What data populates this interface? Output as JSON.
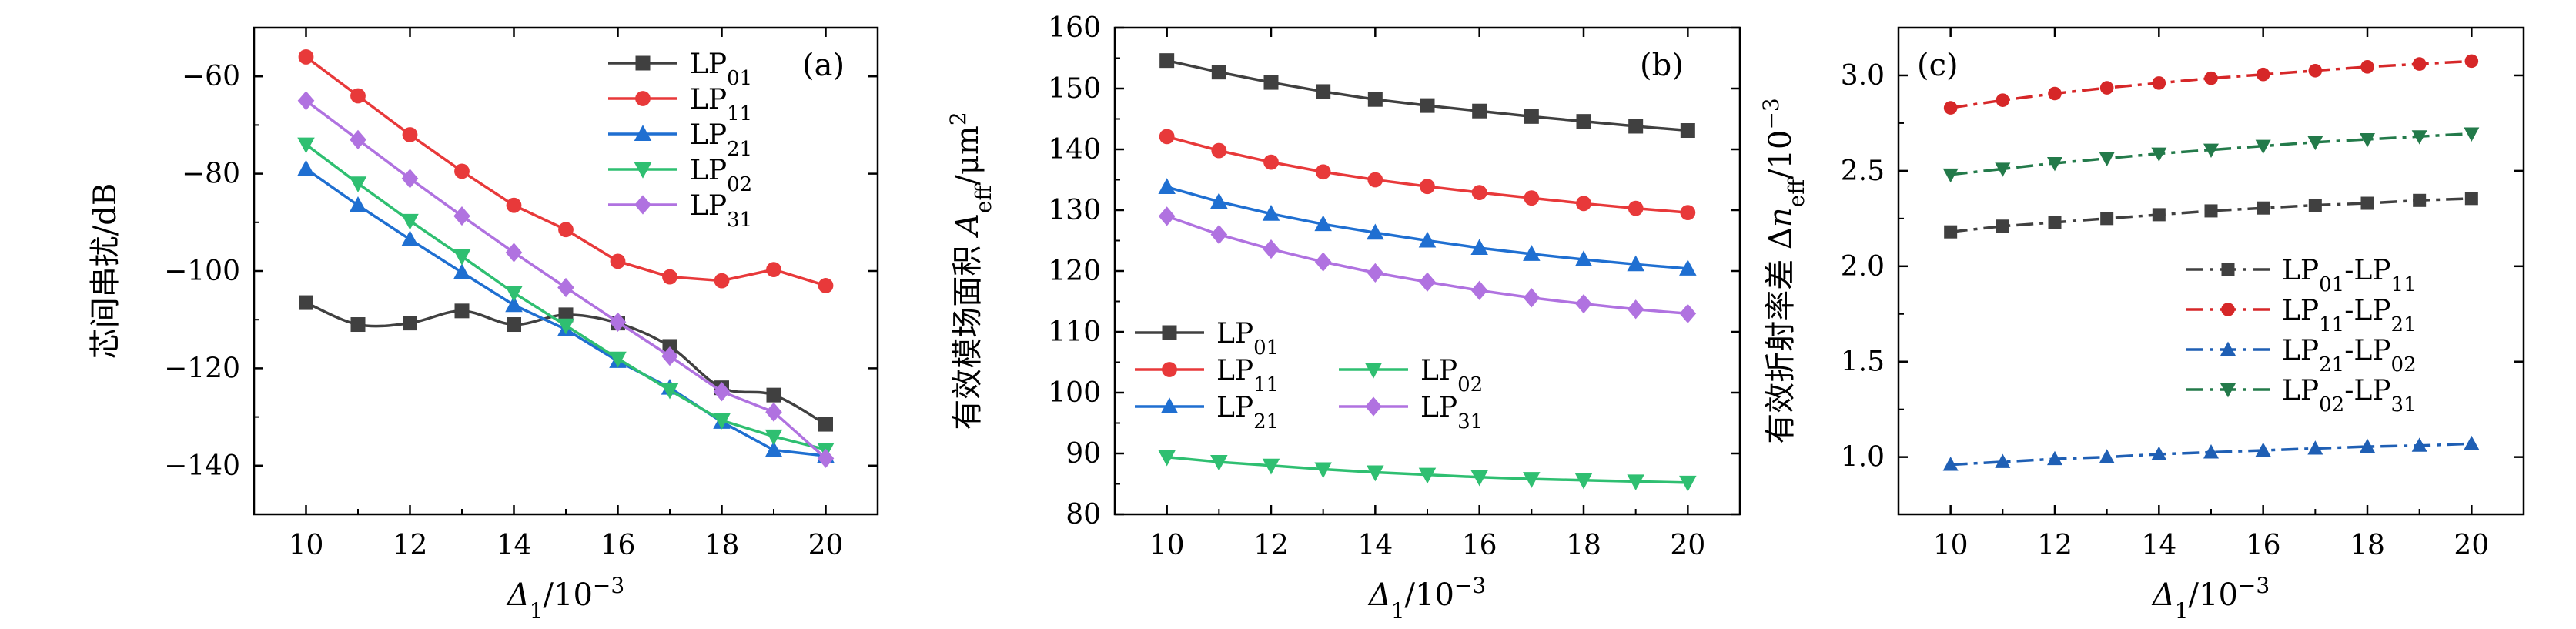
{
  "chart_data": [
    {
      "id": "a",
      "type": "line",
      "panel_label": "(a)",
      "xlabel": "Δ1/10−3",
      "xlabel_main": "Δ",
      "xlabel_sub": "1",
      "xlabel_rest": "/10",
      "xlabel_sup": "−3",
      "ylabel": "芯间串扰/dB",
      "xlim": [
        9,
        21
      ],
      "ylim": [
        -150,
        -50
      ],
      "xticks": [
        10,
        12,
        14,
        16,
        18,
        20
      ],
      "yticks": [
        -140,
        -120,
        -100,
        -80,
        -60
      ],
      "legend_position": "top-right",
      "x": [
        10,
        11,
        12,
        13,
        14,
        15,
        16,
        17,
        18,
        19,
        20
      ],
      "series": [
        {
          "name": "LP01",
          "base": "LP",
          "sub": "01",
          "color": "#404040",
          "marker": "square",
          "line": "smooth",
          "values": [
            -106.5,
            -111,
            -110.7,
            -108.2,
            -111,
            -109,
            -110.7,
            -115.5,
            -124,
            -125.5,
            -131.5
          ]
        },
        {
          "name": "LP11",
          "base": "LP",
          "sub": "11",
          "color": "#e8393a",
          "marker": "circle",
          "line": "solid",
          "values": [
            -56,
            -64,
            -72,
            -79.5,
            -86.5,
            -91.5,
            -98,
            -101.2,
            -102,
            -99.7,
            -103
          ]
        },
        {
          "name": "LP21",
          "base": "LP",
          "sub": "21",
          "color": "#1f6fd1",
          "marker": "triangle-up",
          "line": "solid",
          "values": [
            -79,
            -86.5,
            -93.5,
            -100.3,
            -107,
            -112,
            -118.5,
            -124,
            -131,
            -136.8,
            -138
          ]
        },
        {
          "name": "LP02",
          "base": "LP",
          "sub": "02",
          "color": "#2fbf71",
          "marker": "triangle-down",
          "line": "solid",
          "values": [
            -74,
            -82,
            -89.7,
            -97,
            -104.5,
            -111.2,
            -118,
            -124.5,
            -130.7,
            -134,
            -136.7
          ]
        },
        {
          "name": "LP31",
          "base": "LP",
          "sub": "31",
          "color": "#b072e0",
          "marker": "diamond",
          "line": "solid",
          "values": [
            -65,
            -73,
            -81,
            -88.7,
            -96.2,
            -103.4,
            -110.5,
            -117.5,
            -124.8,
            -129,
            -138.5
          ]
        }
      ]
    },
    {
      "id": "b",
      "type": "line",
      "panel_label": "(b)",
      "xlabel": "Δ1/10−3",
      "xlabel_main": "Δ",
      "xlabel_sub": "1",
      "xlabel_rest": "/10",
      "xlabel_sup": "−3",
      "ylabel": "有效模场面积 Aeff/μm2",
      "ylabel_main": "有效模场面积 ",
      "ylabel_var": "A",
      "ylabel_sub": "eff",
      "ylabel_rest": "/μm",
      "ylabel_sup": "2",
      "xlim": [
        9,
        21
      ],
      "ylim": [
        80,
        160
      ],
      "xticks": [
        10,
        12,
        14,
        16,
        18,
        20
      ],
      "yticks": [
        80,
        90,
        100,
        110,
        120,
        130,
        140,
        150,
        160
      ],
      "legend_position": "bottom-left",
      "x": [
        10,
        11,
        12,
        13,
        14,
        15,
        16,
        17,
        18,
        19,
        20
      ],
      "series": [
        {
          "name": "LP01",
          "base": "LP",
          "sub": "01",
          "color": "#404040",
          "marker": "square",
          "line": "solid",
          "values": [
            154.6,
            152.7,
            151,
            149.5,
            148.2,
            147.2,
            146.3,
            145.4,
            144.6,
            143.8,
            143.1
          ]
        },
        {
          "name": "LP11",
          "base": "LP",
          "sub": "11",
          "color": "#e8393a",
          "marker": "circle",
          "line": "solid",
          "values": [
            142.1,
            139.8,
            137.9,
            136.3,
            135,
            133.9,
            132.9,
            132,
            131.1,
            130.3,
            129.6
          ]
        },
        {
          "name": "LP02",
          "base": "LP",
          "sub": "02",
          "color": "#2fbf71",
          "marker": "triangle-down",
          "line": "solid",
          "values": [
            89.4,
            88.6,
            88,
            87.4,
            86.9,
            86.5,
            86.1,
            85.8,
            85.6,
            85.4,
            85.2
          ]
        },
        {
          "name": "LP21",
          "base": "LP",
          "sub": "21",
          "color": "#1f6fd1",
          "marker": "triangle-up",
          "line": "solid",
          "values": [
            133.8,
            131.4,
            129.4,
            127.7,
            126.3,
            125,
            123.8,
            122.8,
            121.9,
            121.1,
            120.4
          ]
        },
        {
          "name": "LP31",
          "base": "LP",
          "sub": "31",
          "color": "#b072e0",
          "marker": "diamond",
          "line": "solid",
          "values": [
            129,
            126,
            123.6,
            121.5,
            119.7,
            118.2,
            116.8,
            115.6,
            114.6,
            113.7,
            113
          ]
        }
      ]
    },
    {
      "id": "c",
      "type": "line",
      "panel_label": "(c)",
      "xlabel": "Δ1/10−3",
      "xlabel_main": "Δ",
      "xlabel_sub": "1",
      "xlabel_rest": "/10",
      "xlabel_sup": "−3",
      "ylabel": "有效折射率差 Δneff/10−3",
      "ylabel_main": "有效折射率差 Δ",
      "ylabel_var": "n",
      "ylabel_sub": "eff",
      "ylabel_rest": "/10",
      "ylabel_sup": "−3",
      "xlim": [
        9,
        21
      ],
      "ylim": [
        0.7,
        3.25
      ],
      "xticks": [
        10,
        12,
        14,
        16,
        18,
        20
      ],
      "yticks": [
        1.0,
        1.5,
        2.0,
        2.5,
        3.0
      ],
      "ytick_labels": [
        "1.0",
        "1.5",
        "2.0",
        "2.5",
        "3.0"
      ],
      "legend_position": "lower-right",
      "x": [
        10,
        11,
        12,
        13,
        14,
        15,
        16,
        17,
        18,
        19,
        20
      ],
      "series": [
        {
          "name": "LP01-LP11",
          "base": "LP",
          "sub": "01",
          "base2": "-LP",
          "sub2": "11",
          "color": "#404040",
          "marker": "square",
          "line": "dashdot",
          "values": [
            2.18,
            2.21,
            2.23,
            2.25,
            2.27,
            2.29,
            2.305,
            2.32,
            2.33,
            2.345,
            2.355
          ]
        },
        {
          "name": "LP11-LP21",
          "base": "LP",
          "sub": "11",
          "base2": "-LP",
          "sub2": "21",
          "color": "#d62728",
          "marker": "circle",
          "line": "dashdot",
          "values": [
            2.83,
            2.87,
            2.905,
            2.935,
            2.96,
            2.985,
            3.005,
            3.025,
            3.045,
            3.06,
            3.075
          ]
        },
        {
          "name": "LP21-LP02",
          "base": "LP",
          "sub": "21",
          "base2": "-LP",
          "sub2": "02",
          "color": "#1f5fb4",
          "marker": "triangle-up",
          "line": "dashdot",
          "values": [
            0.96,
            0.975,
            0.99,
            1.0,
            1.015,
            1.025,
            1.035,
            1.045,
            1.055,
            1.06,
            1.07
          ]
        },
        {
          "name": "LP02-LP31",
          "base": "LP",
          "sub": "02",
          "base2": "-LP",
          "sub2": "31",
          "color": "#237a4a",
          "marker": "triangle-down",
          "line": "dashdot",
          "values": [
            2.48,
            2.51,
            2.54,
            2.565,
            2.59,
            2.61,
            2.63,
            2.65,
            2.665,
            2.68,
            2.695
          ]
        }
      ]
    }
  ]
}
